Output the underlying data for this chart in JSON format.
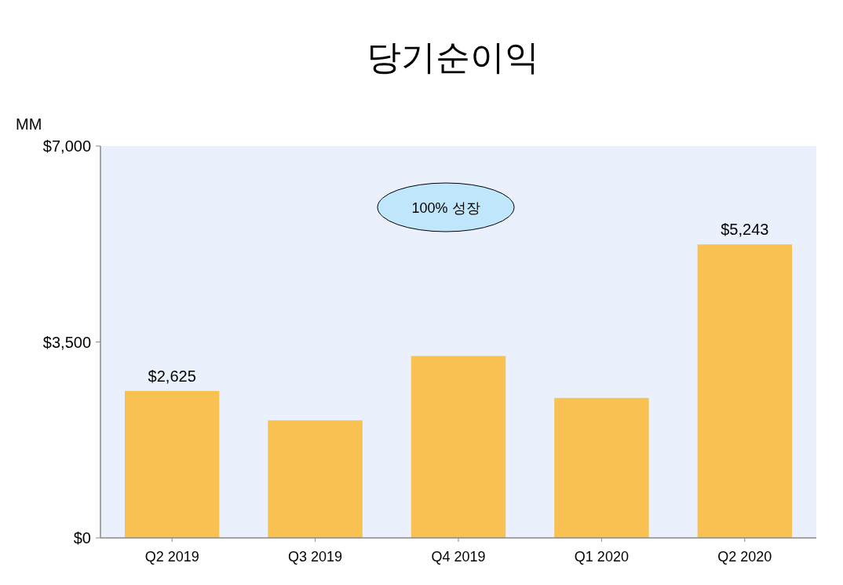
{
  "chart_data": {
    "type": "bar",
    "title": "당기순이익",
    "ylabel": "MM",
    "categories": [
      "Q2 2019",
      "Q3 2019",
      "Q4 2019",
      "Q1 2020",
      "Q2 2020"
    ],
    "values": [
      2625,
      2100,
      3250,
      2500,
      5243
    ],
    "value_labels": [
      "$2,625",
      null,
      null,
      null,
      "$5,243"
    ],
    "color": "#f9c152",
    "ylim": [
      0,
      7000
    ],
    "yticks": [
      {
        "value": 0,
        "label": "$0"
      },
      {
        "value": 3500,
        "label": "$3,500"
      },
      {
        "value": 7000,
        "label": "$7,000"
      }
    ],
    "annotations": [
      "100% 성장"
    ]
  }
}
